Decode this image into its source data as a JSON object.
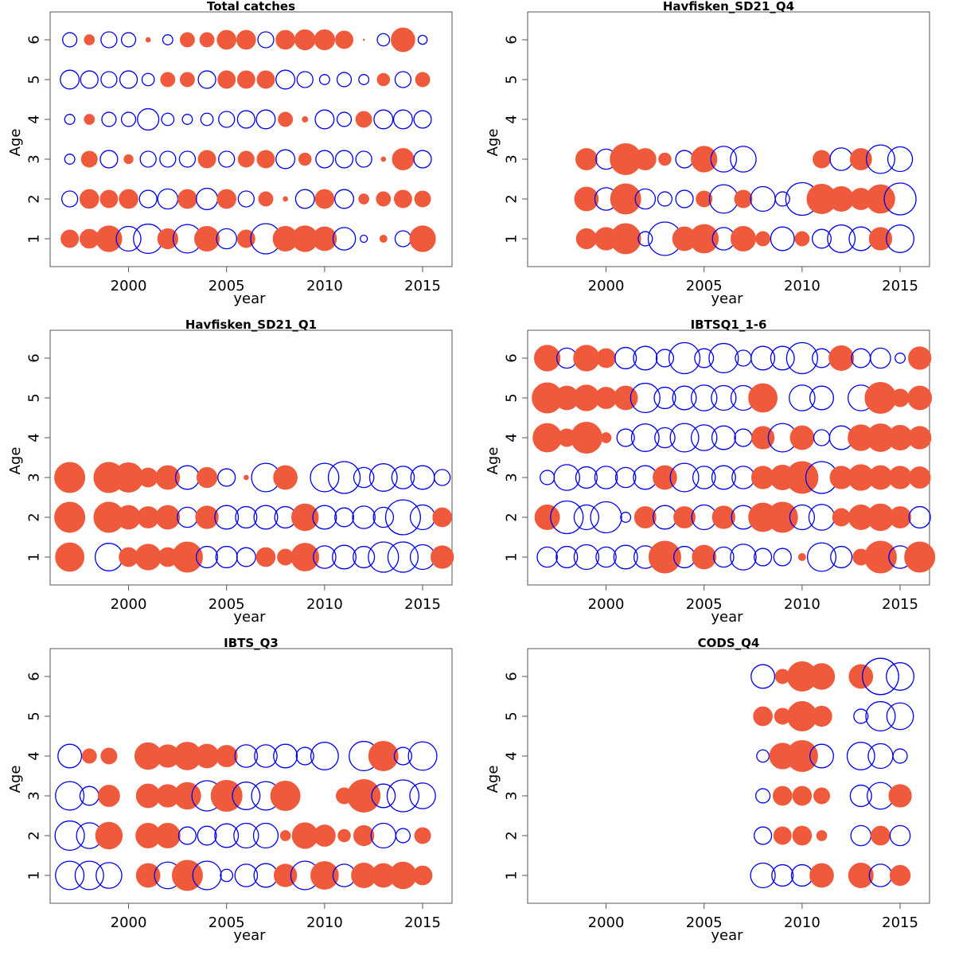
{
  "figure": {
    "colors": {
      "positive": "#EF5A3C",
      "negative": "#0000EE",
      "axis": "#555555"
    }
  },
  "chart_data": [
    {
      "type": "scatter",
      "subtype": "bubble-residuals",
      "title": "Total catches",
      "xlabel": "year",
      "ylabel": "Age",
      "xlim": [
        1996,
        2016.5
      ],
      "ylim": [
        0.3,
        6.7
      ],
      "xticks": [
        2000,
        2005,
        2010,
        2015
      ],
      "yticks": [
        1,
        2,
        3,
        4,
        5,
        6
      ],
      "years": [
        1997,
        1998,
        1999,
        2000,
        2001,
        2002,
        2003,
        2004,
        2005,
        2006,
        2007,
        2008,
        2009,
        2010,
        2011,
        2012,
        2013,
        2014,
        2015
      ],
      "rows": [
        {
          "age": 1,
          "residuals": [
            0.3,
            0.35,
            0.65,
            -0.6,
            -0.85,
            0.4,
            -0.8,
            0.6,
            -0.4,
            0.3,
            -0.9,
            0.6,
            0.65,
            0.55,
            -0.5,
            -0.05,
            0.05,
            -0.25,
            0.65
          ]
        },
        {
          "age": 2,
          "residuals": [
            -0.25,
            0.35,
            0.3,
            0.35,
            -0.3,
            -0.4,
            0.35,
            -0.45,
            0.35,
            -0.25,
            0.2,
            0.02,
            -0.35,
            0.35,
            -0.35,
            0.1,
            0.2,
            0.3,
            0.25
          ]
        },
        {
          "age": 3,
          "residuals": [
            -0.1,
            0.25,
            -0.3,
            0.08,
            -0.25,
            -0.25,
            -0.25,
            0.3,
            -0.25,
            0.25,
            0.3,
            -0.35,
            0.15,
            -0.3,
            -0.3,
            -0.25,
            0.02,
            0.45,
            -0.3
          ]
        },
        {
          "age": 4,
          "residuals": [
            -0.1,
            0.1,
            -0.2,
            -0.2,
            -0.45,
            -0.15,
            -0.1,
            -0.15,
            -0.25,
            -0.3,
            -0.35,
            0.2,
            0.03,
            -0.35,
            -0.2,
            0.25,
            -0.35,
            -0.35,
            -0.3
          ]
        },
        {
          "age": 5,
          "residuals": [
            -0.35,
            -0.3,
            -0.25,
            -0.3,
            -0.15,
            0.2,
            0.2,
            -0.3,
            0.3,
            0.3,
            0.3,
            -0.35,
            -0.25,
            -0.1,
            -0.2,
            -0.1,
            0.15,
            -0.25,
            0.2
          ]
        },
        {
          "age": 6,
          "residuals": [
            -0.2,
            0.1,
            -0.25,
            -0.2,
            0.02,
            -0.1,
            0.2,
            0.2,
            0.35,
            0.35,
            -0.25,
            0.35,
            0.4,
            0.4,
            0.3,
            0,
            -0.15,
            0.55,
            -0.08
          ]
        }
      ]
    },
    {
      "type": "scatter",
      "subtype": "bubble-residuals",
      "title": "Havfisken_SD21_Q4",
      "xlabel": "year",
      "ylabel": "Age",
      "xlim": [
        1996,
        2016.5
      ],
      "ylim": [
        0.3,
        6.7
      ],
      "xticks": [
        2000,
        2005,
        2010,
        2015
      ],
      "yticks": [
        1,
        2,
        3,
        4,
        5,
        6
      ],
      "years": [
        1999,
        2000,
        2001,
        2002,
        2003,
        2004,
        2005,
        2006,
        2007,
        2008,
        2009,
        2010,
        2011,
        2012,
        2013,
        2014,
        2015
      ],
      "rows": [
        {
          "age": 1,
          "residuals": [
            0.4,
            0.5,
            0.9,
            -0.2,
            -1.1,
            0.55,
            0.8,
            -0.5,
            0.6,
            0.2,
            -0.55,
            0.2,
            -0.35,
            -0.75,
            -0.55,
            0.5,
            -0.75
          ]
        },
        {
          "age": 2,
          "residuals": [
            0.55,
            -0.5,
            0.9,
            -0.4,
            -0.2,
            -0.3,
            0.25,
            -0.8,
            0.3,
            -0.6,
            -0.2,
            -1.05,
            0.85,
            0.6,
            0.45,
            0.8,
            -1.0
          ]
        },
        {
          "age": 3,
          "residuals": [
            0.45,
            -0.4,
            0.95,
            0.45,
            0.15,
            -0.3,
            0.65,
            -0.65,
            -0.65,
            null,
            null,
            null,
            0.3,
            -0.5,
            0.45,
            -0.8,
            -0.6
          ]
        }
      ]
    },
    {
      "type": "scatter",
      "subtype": "bubble-residuals",
      "title": "Havfisken_SD21_Q1",
      "xlabel": "year",
      "ylabel": "Age",
      "xlim": [
        1996,
        2016.5
      ],
      "ylim": [
        0.3,
        6.7
      ],
      "xticks": [
        2000,
        2005,
        2010,
        2015
      ],
      "yticks": [
        1,
        2,
        3,
        4,
        5,
        6
      ],
      "years": [
        1997,
        1998,
        1999,
        2000,
        2001,
        2002,
        2003,
        2004,
        2005,
        2006,
        2007,
        2008,
        2009,
        2010,
        2011,
        2012,
        2013,
        2014,
        2015,
        2016
      ],
      "rows": [
        {
          "age": 1,
          "residuals": [
            0.8,
            null,
            -0.75,
            0.35,
            0.65,
            0.35,
            0.9,
            -0.45,
            -0.45,
            -0.35,
            0.35,
            0.25,
            0.75,
            -0.5,
            -0.55,
            -0.45,
            -0.9,
            -0.9,
            -0.6,
            0.5
          ]
        },
        {
          "age": 2,
          "residuals": [
            0.9,
            null,
            0.9,
            0.55,
            0.45,
            0.55,
            -0.4,
            0.5,
            -0.55,
            -0.45,
            -0.55,
            -0.45,
            0.7,
            -0.55,
            -0.35,
            -0.5,
            -0.4,
            -1.2,
            -0.6,
            0.35
          ]
        },
        {
          "age": 3,
          "residuals": [
            0.9,
            null,
            0.9,
            0.85,
            0.35,
            0.55,
            -0.55,
            0.4,
            -0.3,
            0.02,
            -0.8,
            0.55,
            null,
            -0.8,
            -1.0,
            -0.4,
            -0.75,
            -0.5,
            -0.55,
            -0.25
          ]
        }
      ]
    },
    {
      "type": "scatter",
      "subtype": "bubble-residuals",
      "title": "IBTSQ1_1-6",
      "xlabel": "year",
      "ylabel": "Age",
      "xlim": [
        1996,
        2016.5
      ],
      "ylim": [
        0.3,
        6.7
      ],
      "xticks": [
        2000,
        2005,
        2010,
        2015
      ],
      "yticks": [
        1,
        2,
        3,
        4,
        5,
        6
      ],
      "years": [
        1997,
        1998,
        1999,
        2000,
        2001,
        2002,
        2003,
        2004,
        2005,
        2006,
        2007,
        2008,
        2009,
        2010,
        2011,
        2012,
        2013,
        2014,
        2015,
        2016
      ],
      "rows": [
        {
          "age": 1,
          "residuals": [
            -0.4,
            -0.45,
            -0.6,
            -0.4,
            -0.55,
            -0.5,
            1.0,
            -0.45,
            0.55,
            -0.4,
            -0.65,
            -0.3,
            -0.3,
            0.05,
            -0.8,
            -0.45,
            0.25,
            1.0,
            -0.5,
            0.9
          ]
        },
        {
          "age": 2,
          "residuals": [
            0.6,
            -1.05,
            -0.6,
            -0.95,
            -0.1,
            0.45,
            -0.55,
            0.45,
            -0.6,
            0.5,
            -0.55,
            0.8,
            0.9,
            -0.6,
            -0.65,
            0.3,
            0.6,
            0.7,
            0.45,
            -0.45
          ]
        },
        {
          "age": 3,
          "residuals": [
            -0.2,
            -0.65,
            -0.45,
            -0.5,
            -0.4,
            -0.55,
            0.55,
            -0.8,
            -0.5,
            -0.55,
            -0.5,
            0.5,
            0.6,
            1.0,
            -1.0,
            0.5,
            0.65,
            0.55,
            0.5,
            0.45
          ]
        },
        {
          "age": 4,
          "residuals": [
            0.8,
            0.3,
            0.95,
            0.1,
            -0.3,
            -0.75,
            -0.4,
            -0.8,
            -0.65,
            -0.55,
            -0.3,
            0.5,
            -0.8,
            0.55,
            -0.25,
            -0.55,
            0.65,
            0.75,
            0.6,
            0.5
          ]
        },
        {
          "age": 5,
          "residuals": [
            0.9,
            0.55,
            0.65,
            0.45,
            0.55,
            -0.85,
            -0.45,
            -0.55,
            -0.65,
            -0.6,
            -0.6,
            0.8,
            null,
            -0.65,
            -0.55,
            null,
            -0.65,
            0.95,
            0.3,
            0.55
          ]
        },
        {
          "age": 6,
          "residuals": [
            0.65,
            -0.4,
            0.65,
            0.35,
            -0.45,
            -0.55,
            -0.3,
            -0.95,
            -0.35,
            -0.85,
            -0.25,
            -0.55,
            -0.55,
            -0.95,
            -0.35,
            0.6,
            -0.35,
            -0.4,
            -0.1,
            0.5
          ]
        }
      ]
    },
    {
      "type": "scatter",
      "subtype": "bubble-residuals",
      "title": "IBTS_Q3",
      "xlabel": "year",
      "ylabel": "Age",
      "xlim": [
        1996,
        2016.5
      ],
      "ylim": [
        0.3,
        6.7
      ],
      "xticks": [
        2000,
        2005,
        2010,
        2015
      ],
      "yticks": [
        1,
        2,
        3,
        4,
        5,
        6
      ],
      "years": [
        1997,
        1998,
        1999,
        2000,
        2001,
        2002,
        2003,
        2004,
        2005,
        2006,
        2007,
        2008,
        2009,
        2010,
        2011,
        2012,
        2013,
        2014,
        2015
      ],
      "rows": [
        {
          "age": 1,
          "residuals": [
            -0.8,
            -0.8,
            -0.65,
            null,
            0.55,
            -0.7,
            0.9,
            -0.8,
            -0.15,
            -0.5,
            -0.55,
            0.5,
            -0.8,
            0.75,
            -0.5,
            0.6,
            0.55,
            0.7,
            0.35
          ]
        },
        {
          "age": 2,
          "residuals": [
            -0.85,
            -0.65,
            0.7,
            null,
            0.6,
            0.6,
            -0.3,
            -0.35,
            -0.55,
            -0.6,
            -0.6,
            0.1,
            0.65,
            0.45,
            0.15,
            0.4,
            -0.6,
            -0.2,
            0.25
          ]
        },
        {
          "age": 3,
          "residuals": [
            -0.8,
            -0.35,
            0.45,
            null,
            0.55,
            0.5,
            0.7,
            -0.9,
            0.95,
            -0.75,
            -0.8,
            0.85,
            null,
            null,
            0.25,
            1.05,
            -0.55,
            -1.0,
            -0.65
          ]
        },
        {
          "age": 4,
          "residuals": [
            -0.55,
            0.2,
            0.25,
            null,
            0.7,
            0.5,
            0.75,
            0.55,
            0.45,
            -0.5,
            -0.5,
            -0.55,
            -0.3,
            -0.75,
            null,
            -0.85,
            0.85,
            -0.3,
            -0.8
          ]
        }
      ]
    },
    {
      "type": "scatter",
      "subtype": "bubble-residuals",
      "title": "CODS_Q4",
      "xlabel": "year",
      "ylabel": "Age",
      "xlim": [
        1996,
        2016.5
      ],
      "ylim": [
        0.3,
        6.7
      ],
      "xticks": [
        2000,
        2005,
        2010,
        2015
      ],
      "yticks": [
        1,
        2,
        3,
        4,
        5,
        6
      ],
      "years": [
        2008,
        2009,
        2010,
        2011,
        2012,
        2013,
        2014,
        2015
      ],
      "rows": [
        {
          "age": 1,
          "residuals": [
            -0.6,
            -0.45,
            -0.45,
            0.55,
            null,
            0.6,
            -0.5,
            0.4
          ]
        },
        {
          "age": 2,
          "residuals": [
            -0.3,
            0.3,
            0.35,
            0.1,
            null,
            -0.4,
            0.35,
            -0.4
          ]
        },
        {
          "age": 3,
          "residuals": [
            -0.2,
            0.35,
            0.35,
            0.25,
            null,
            -0.45,
            -0.7,
            0.5
          ]
        },
        {
          "age": 4,
          "residuals": [
            -0.15,
            0.65,
            0.95,
            -0.55,
            null,
            -0.75,
            -0.6,
            -0.2
          ]
        },
        {
          "age": 5,
          "residuals": [
            0.35,
            0.25,
            0.85,
            0.4,
            null,
            -0.2,
            -0.85,
            -0.7
          ]
        },
        {
          "age": 6,
          "residuals": [
            -0.55,
            0.2,
            0.85,
            0.65,
            null,
            0.55,
            -1.3,
            -0.75
          ]
        }
      ]
    }
  ]
}
